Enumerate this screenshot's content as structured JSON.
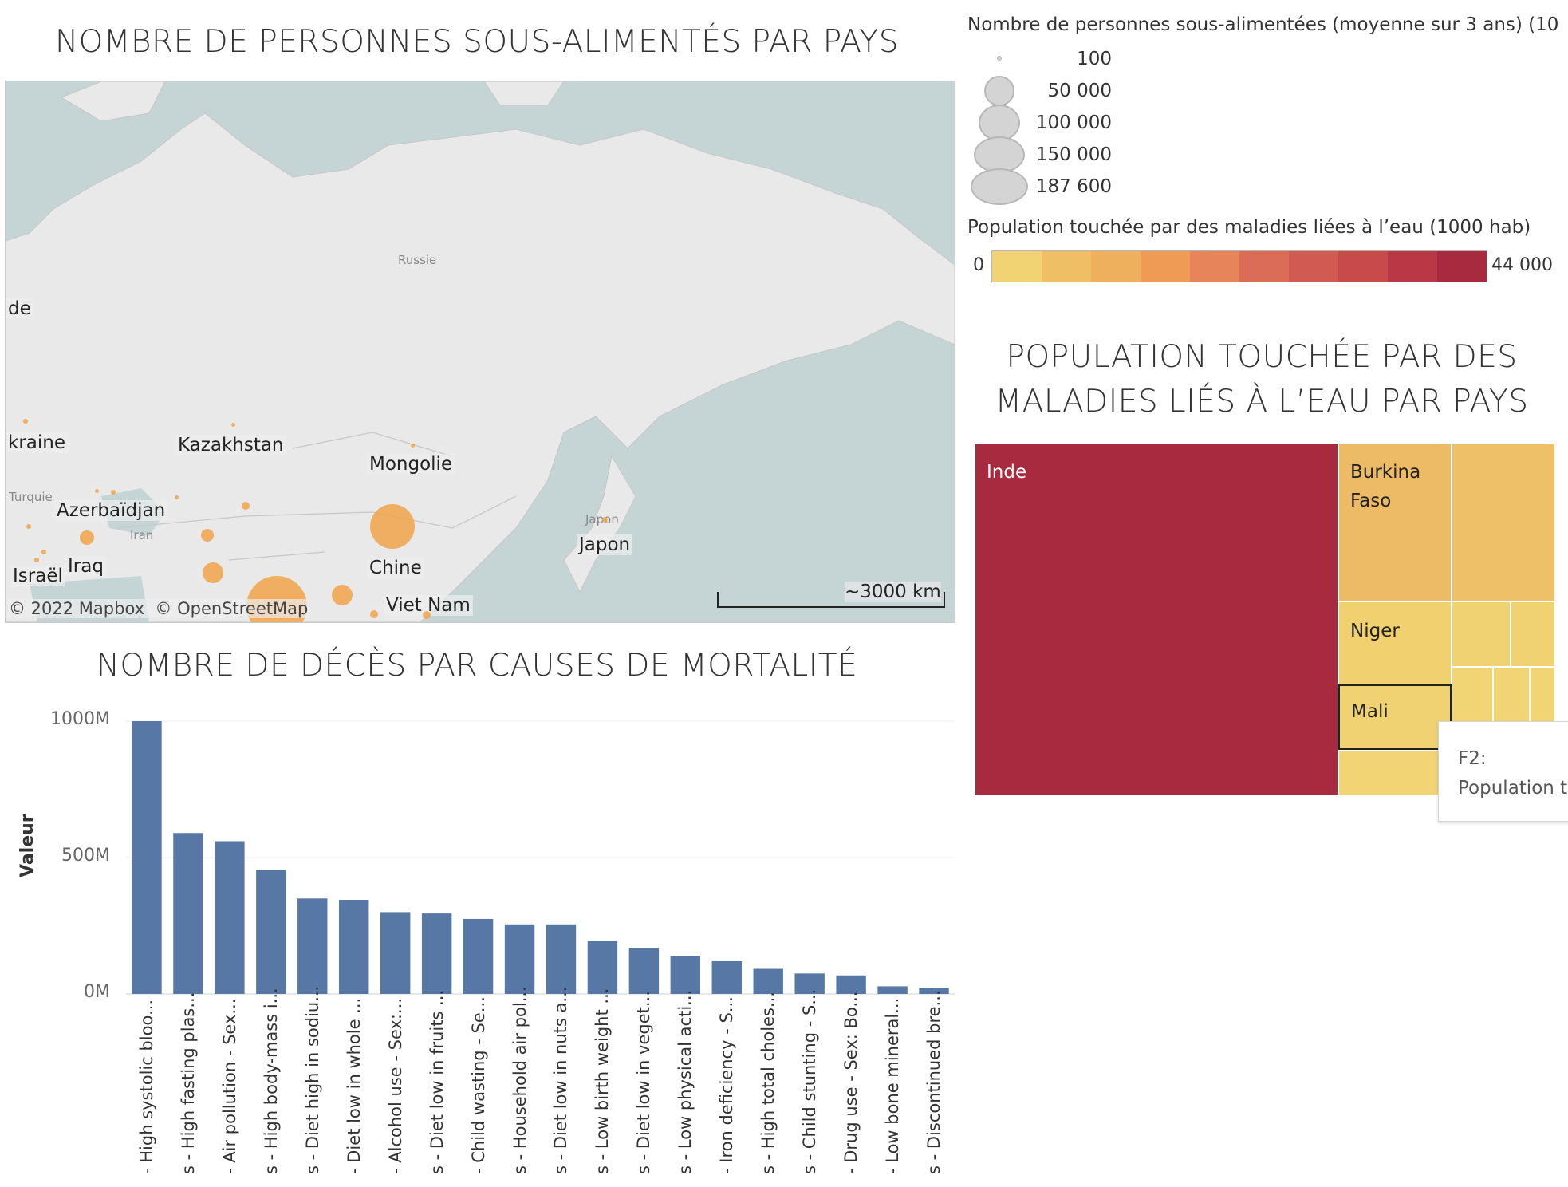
{
  "map": {
    "title": "NOMBRE DE PERSONNES SOUS-ALIMENTÉS PAR PAYS",
    "attribution": "© 2022 Mapbox  © OpenStreetMap",
    "scale": "~3000 km",
    "labels": {
      "russie": "Russie",
      "ukraine": "kraine",
      "inde_left": "de",
      "kazakhstan": "Kazakhstan",
      "mongolie": "Mongolie",
      "turquie": "Turquie",
      "azerbaidjan": "Azerbaïdjan",
      "iran": "Iran",
      "iraq": "Iraq",
      "israel": "Israël",
      "chine": "Chine",
      "japon_small": "Japon",
      "japon": "Japon",
      "vietnam": "Viet Nam"
    },
    "bubble_color": "#f0a54f"
  },
  "size_legend": {
    "title": "Nombre de personnes sous-alimentées (moyenne sur 3 ans) (10...",
    "items": [
      "100",
      "50 000",
      "100 000",
      "150 000",
      "187 600"
    ]
  },
  "color_legend": {
    "title": "Population touchée par des maladies liées à l’eau  (1000 hab)",
    "min": "0",
    "max": "44 000",
    "colors": [
      "#f2d374",
      "#efbf66",
      "#eeb05c",
      "#ef9b55",
      "#e7845a",
      "#db6c58",
      "#d15b52",
      "#c84a4a",
      "#ba3845",
      "#a82a3f"
    ]
  },
  "treemap": {
    "title_line1": "POPULATION TOUCHÉE PAR DES",
    "title_line2": "MALADIES LIÉS À L’EAU PAR PAYS",
    "cells": {
      "inde": "Inde",
      "burkina_1": "Burkina",
      "burkina_2": "Faso",
      "niger": "Niger",
      "mali": "Mali"
    },
    "tooltip_1": "F2:",
    "tooltip_2": "Population t"
  },
  "chart_data": {
    "type": "bar",
    "title": "NOMBRE DE DÉCÈS PAR CAUSES DE MORTALITÉ",
    "ylabel": "Valeur",
    "ylim": [
      0,
      1000
    ],
    "yticks": [
      "1000M",
      "500M",
      "0M"
    ],
    "categories": [
      "- High systolic bloo...",
      "s - High fasting plas...",
      "- Air pollution - Sex...",
      "s - High body-mass i...",
      "s - Diet high in sodiu...",
      "- Diet low in whole ...",
      "- Alcohol use - Sex:...",
      "s - Diet low in fruits ...",
      "- Child wasting - Se...",
      "s - Household air pol...",
      "s - Diet low in nuts a...",
      "s - Low birth weight ...",
      "s - Diet low in veget...",
      "s - Low physical acti...",
      "- Iron deficiency - S...",
      "s - High total choles...",
      "s - Child stunting - S...",
      "- Drug use - Sex: Bo...",
      "- Low bone mineral...",
      "s - Discontinued bre..."
    ],
    "values": [
      1000,
      590,
      560,
      455,
      350,
      345,
      300,
      295,
      275,
      255,
      255,
      195,
      168,
      138,
      120,
      92,
      75,
      68,
      28,
      22
    ],
    "color": "#5778a4"
  }
}
